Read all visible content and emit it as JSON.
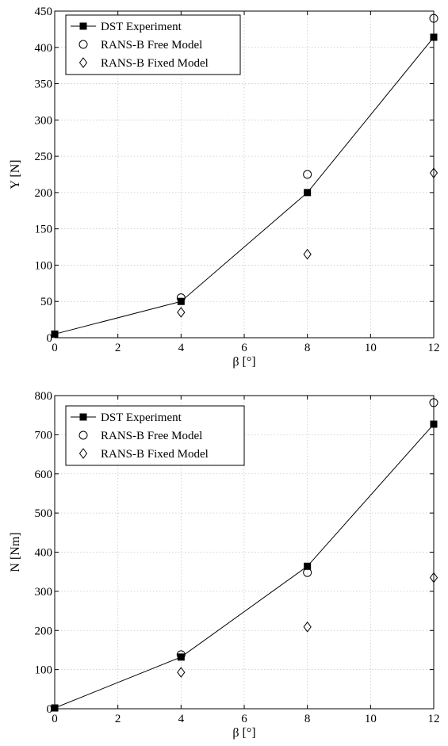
{
  "chart_data": [
    {
      "type": "scatter",
      "xlabel": "β [°]",
      "ylabel": "Y [N]",
      "xlim": [
        0,
        12
      ],
      "ylim": [
        0,
        450
      ],
      "xticks": [
        0,
        2,
        4,
        6,
        8,
        10,
        12
      ],
      "yticks": [
        0,
        50,
        100,
        150,
        200,
        250,
        300,
        350,
        400,
        450
      ],
      "grid": true,
      "legend_position": "top-left",
      "series": [
        {
          "name": "DST Experiment",
          "marker": "filled-square",
          "line": true,
          "x": [
            0,
            4,
            8,
            12
          ],
          "y": [
            5,
            50,
            200,
            414
          ]
        },
        {
          "name": "RANS-B Free Model",
          "marker": "open-circle",
          "line": false,
          "x": [
            4,
            8,
            12
          ],
          "y": [
            55,
            225,
            440
          ]
        },
        {
          "name": "RANS-B Fixed Model",
          "marker": "open-diamond",
          "line": false,
          "x": [
            4,
            8,
            12
          ],
          "y": [
            35,
            115,
            227
          ]
        }
      ]
    },
    {
      "type": "scatter",
      "xlabel": "β [°]",
      "ylabel": "N [Nm]",
      "xlim": [
        0,
        12
      ],
      "ylim": [
        0,
        800
      ],
      "xticks": [
        0,
        2,
        4,
        6,
        8,
        10,
        12
      ],
      "yticks": [
        0,
        100,
        200,
        300,
        400,
        500,
        600,
        700,
        800
      ],
      "grid": true,
      "legend_position": "top-left",
      "series": [
        {
          "name": "DST Experiment",
          "marker": "filled-square",
          "line": true,
          "x": [
            0,
            4,
            8,
            12
          ],
          "y": [
            2,
            132,
            364,
            727
          ]
        },
        {
          "name": "RANS-B Free Model",
          "marker": "open-circle",
          "line": false,
          "x": [
            4,
            8,
            12
          ],
          "y": [
            138,
            348,
            782
          ]
        },
        {
          "name": "RANS-B Fixed Model",
          "marker": "open-diamond",
          "line": false,
          "x": [
            4,
            8,
            12
          ],
          "y": [
            93,
            209,
            335
          ]
        }
      ]
    }
  ]
}
